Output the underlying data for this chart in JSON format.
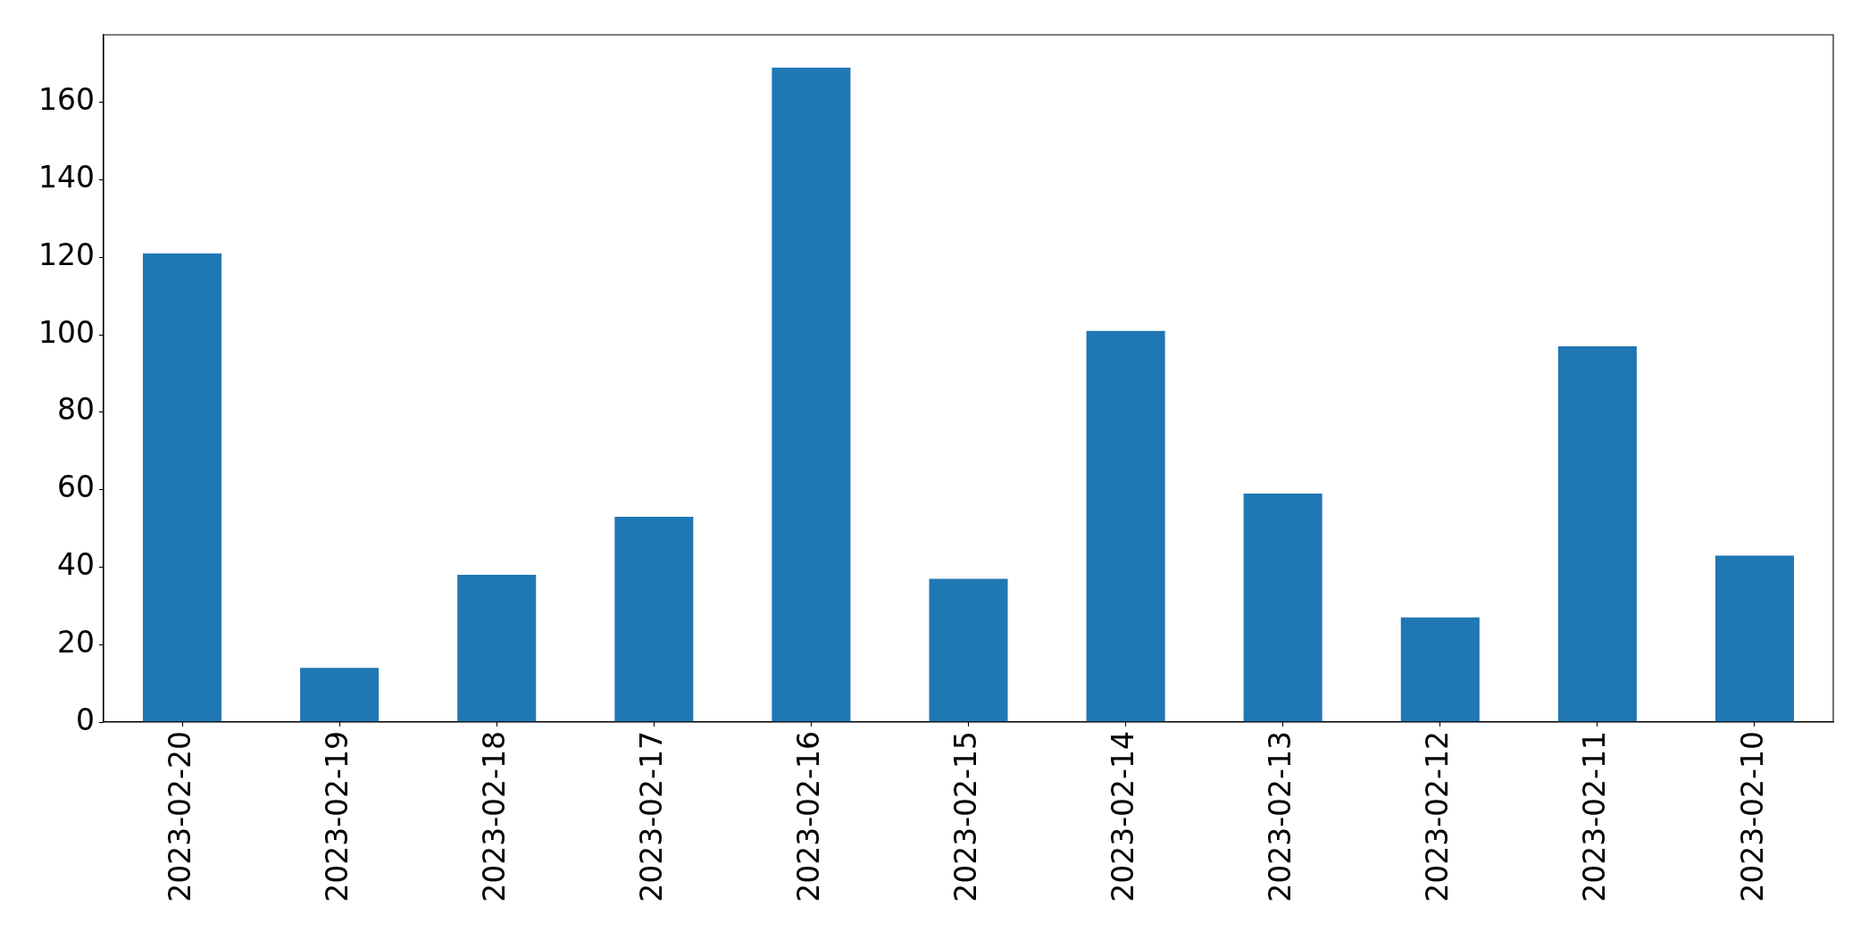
{
  "chart_data": {
    "type": "bar",
    "categories": [
      "2023-02-20",
      "2023-02-19",
      "2023-02-18",
      "2023-02-17",
      "2023-02-16",
      "2023-02-15",
      "2023-02-14",
      "2023-02-13",
      "2023-02-12",
      "2023-02-11",
      "2023-02-10"
    ],
    "values": [
      121,
      14,
      38,
      53,
      169,
      37,
      101,
      59,
      27,
      97,
      43
    ],
    "color": "#1f77b4",
    "ylim": [
      0,
      177.45
    ],
    "yticks": [
      0,
      20,
      40,
      60,
      80,
      100,
      120,
      140,
      160
    ]
  }
}
